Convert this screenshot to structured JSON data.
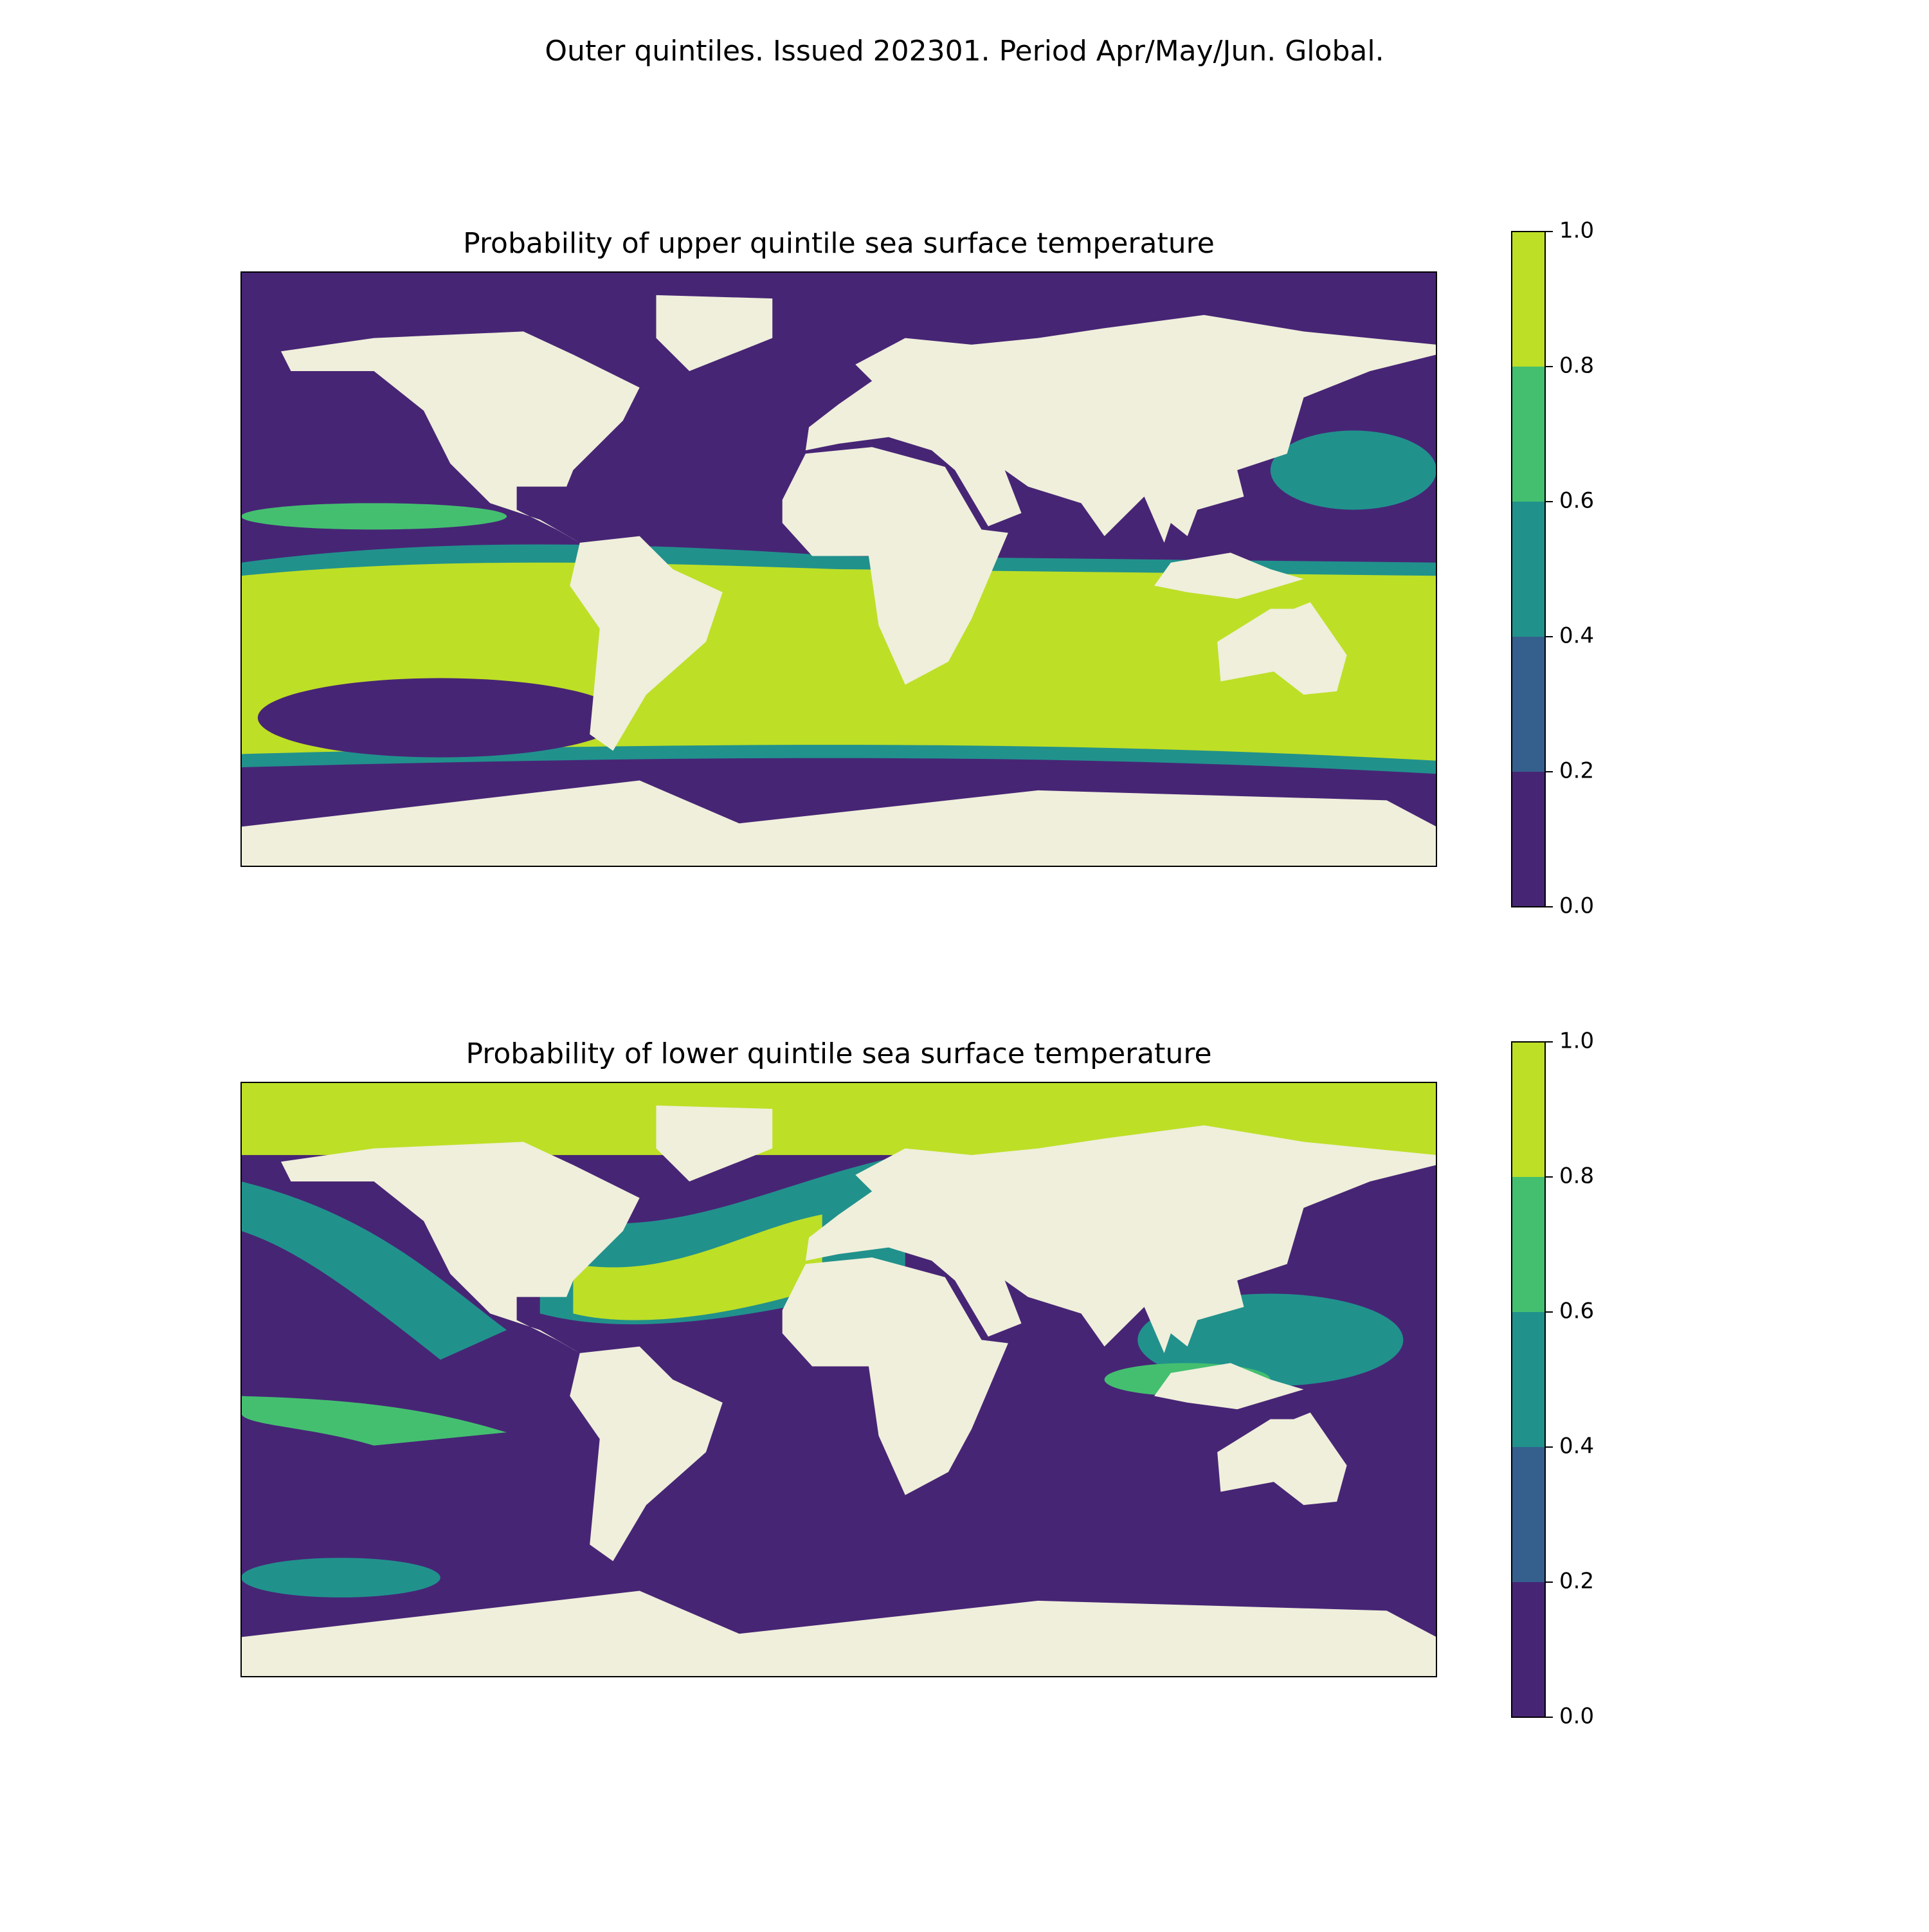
{
  "title": "Outer quintiles. Issued 202301. Period Apr/May/Jun. Global.",
  "panels": [
    {
      "title": "Probability of upper quintile sea surface temperature",
      "colorbar": {
        "colors": [
          "#472575",
          "#355f8d",
          "#21918c",
          "#44bf70",
          "#bddf26"
        ],
        "ticks": [
          {
            "value": 0,
            "label": "0.0"
          },
          0.2,
          0.4,
          0.6,
          0.8,
          {
            "value": 1,
            "label": "1.0"
          }
        ]
      }
    },
    {
      "title": "Probability of lower quintile sea surface temperature",
      "colorbar": {
        "colors": [
          "#472575",
          "#355f8d",
          "#21918c",
          "#44bf70",
          "#bddf26"
        ],
        "ticks": [
          {
            "value": 0,
            "label": "0.0"
          },
          0.2,
          0.4,
          0.6,
          0.8,
          {
            "value": 1,
            "label": "1.0"
          }
        ]
      }
    }
  ]
}
